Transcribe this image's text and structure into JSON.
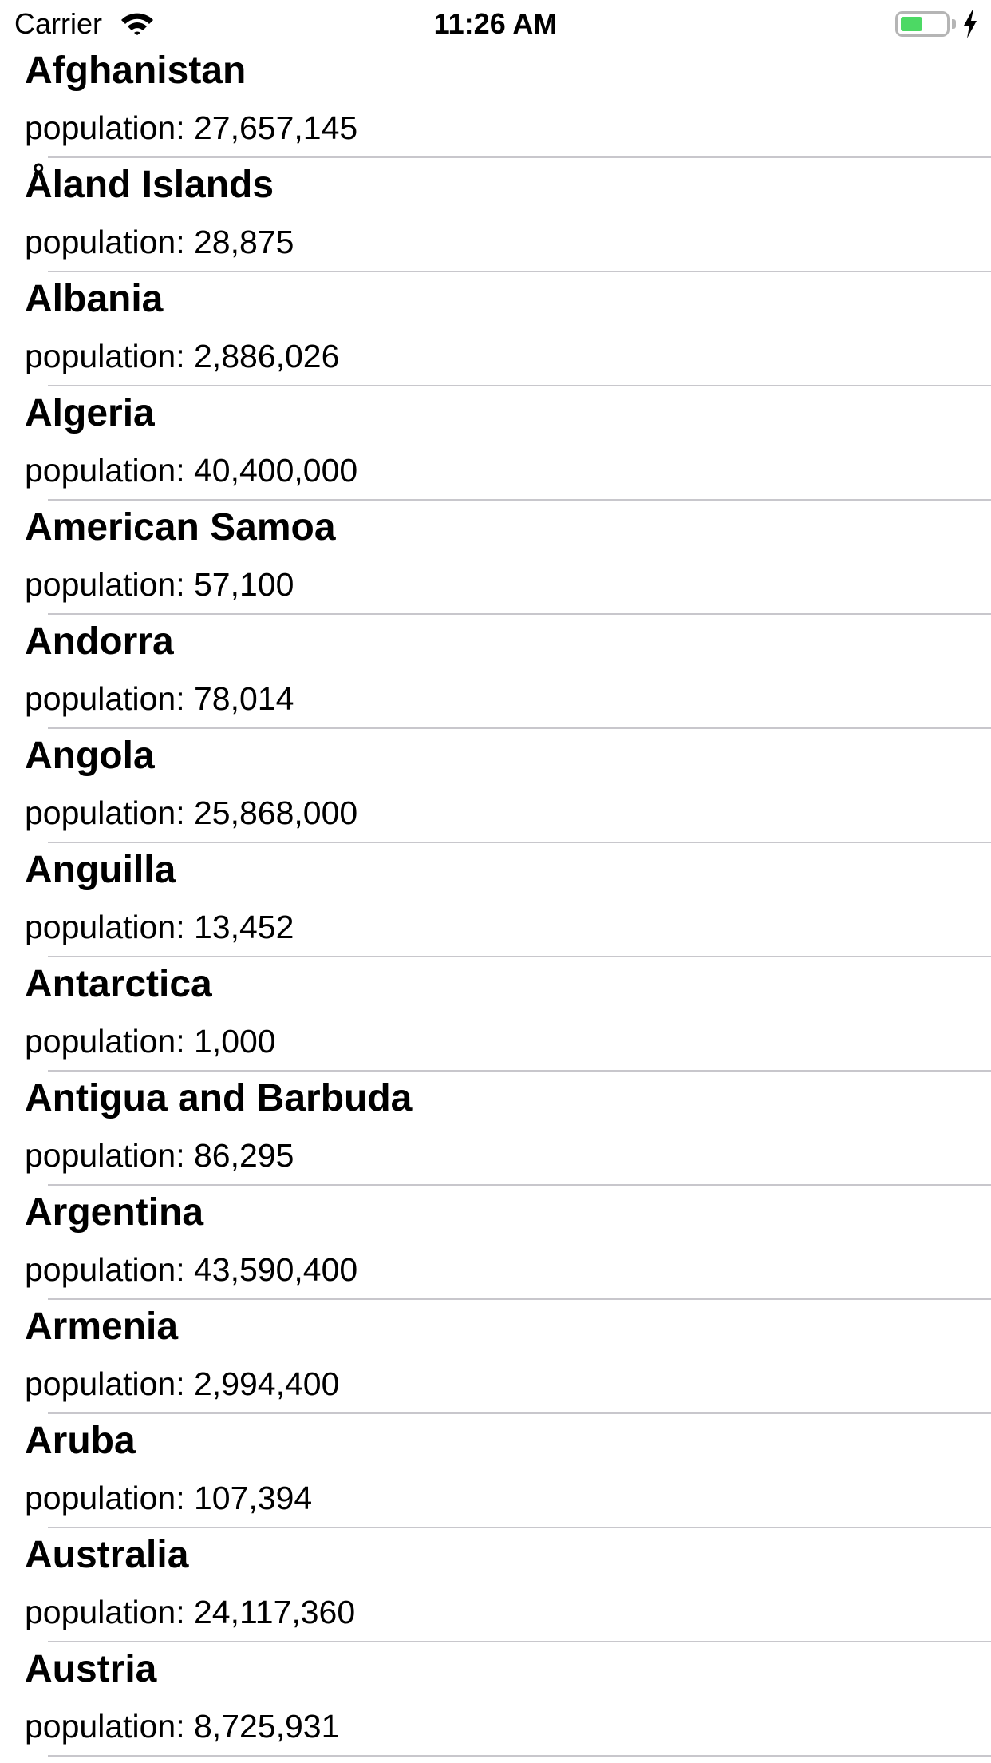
{
  "status_bar": {
    "carrier": "Carrier",
    "time": "11:26 AM",
    "battery_level": 0.5,
    "battery_color": "#4cd964",
    "icons": [
      "wifi-icon",
      "battery-icon",
      "charging-bolt-icon"
    ]
  },
  "countries": [
    {
      "name": "Afghanistan",
      "population": "population: 27,657,145"
    },
    {
      "name": "Åland Islands",
      "population": "population: 28,875"
    },
    {
      "name": "Albania",
      "population": "population: 2,886,026"
    },
    {
      "name": "Algeria",
      "population": "population: 40,400,000"
    },
    {
      "name": "American Samoa",
      "population": "population: 57,100"
    },
    {
      "name": "Andorra",
      "population": "population: 78,014"
    },
    {
      "name": "Angola",
      "population": "population: 25,868,000"
    },
    {
      "name": "Anguilla",
      "population": "population: 13,452"
    },
    {
      "name": "Antarctica",
      "population": "population: 1,000"
    },
    {
      "name": "Antigua and Barbuda",
      "population": "population: 86,295"
    },
    {
      "name": "Argentina",
      "population": "population: 43,590,400"
    },
    {
      "name": "Armenia",
      "population": "population: 2,994,400"
    },
    {
      "name": "Aruba",
      "population": "population: 107,394"
    },
    {
      "name": "Australia",
      "population": "population: 24,117,360"
    },
    {
      "name": "Austria",
      "population": "population: 8,725,931"
    }
  ]
}
